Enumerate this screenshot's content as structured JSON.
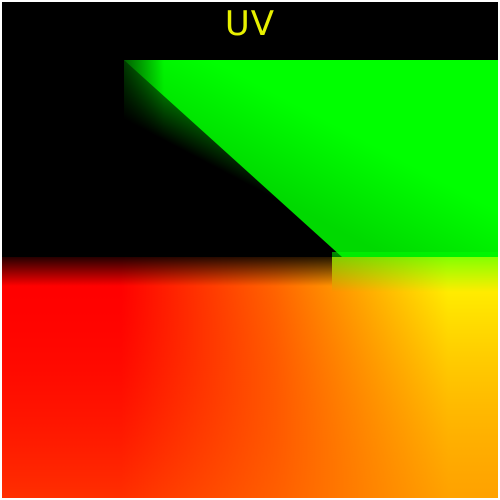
{
  "title": "UV",
  "colors": {
    "background": "#000000",
    "title": "#e8f000",
    "red": "#ff0000",
    "green": "#00ff00",
    "yellow": "#ffff00",
    "orange": "#ff9900",
    "border": "#ffffff"
  }
}
